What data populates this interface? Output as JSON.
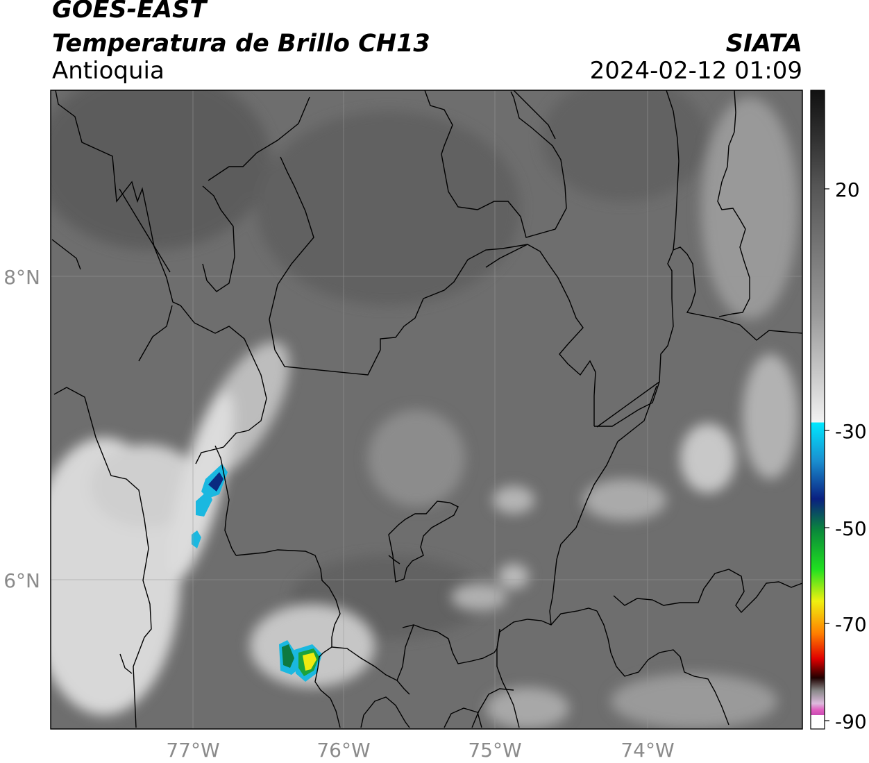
{
  "header": {
    "satellite": "GOES-EAST",
    "product": "Temperatura de Brillo CH13",
    "region": "Antioquia",
    "agency": "SIATA",
    "datetime": "2024-02-12 01:09"
  },
  "axes": {
    "lon_labels": [
      "77°W",
      "76°W",
      "75°W",
      "74°W"
    ],
    "lat_labels": [
      "8°N",
      "6°N"
    ]
  },
  "colorbar": {
    "ticks": [
      "20",
      "-30",
      "-50",
      "-70",
      "-90"
    ]
  },
  "colors": {
    "background": "#6e6e6e",
    "boundary": "#000000",
    "grid": "#9a9a9a",
    "cold_cyan": "#1ab8e0",
    "cold_blue": "#0a2a80",
    "cold_green": "#1ca33c",
    "cold_yellow": "#f0ea10"
  }
}
